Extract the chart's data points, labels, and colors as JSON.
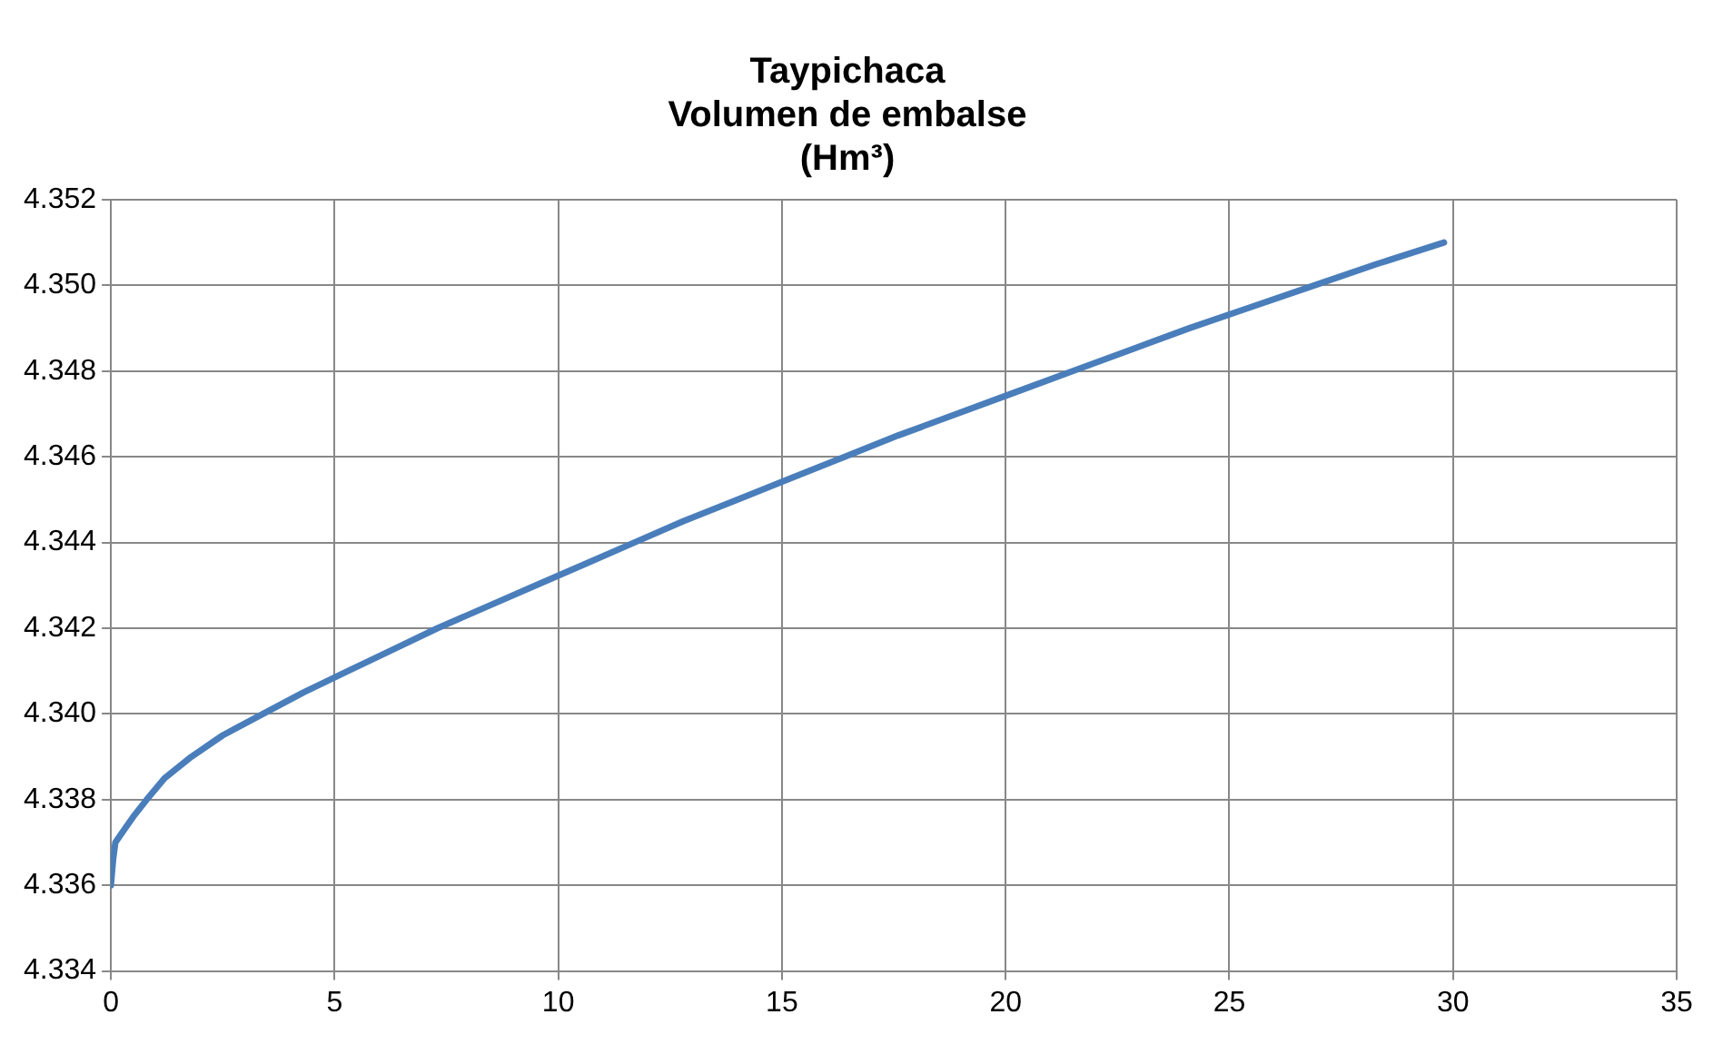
{
  "chart_data": {
    "type": "line",
    "title": "Taypichaca\nVolumen de embalse\n(Hm³)",
    "x": [
      0,
      0.05,
      0.1,
      0.3,
      0.5,
      0.8,
      1.2,
      1.8,
      2.5,
      3.4,
      4.3,
      5.3,
      6.3,
      7.3,
      8.4,
      9.5,
      10.6,
      11.7,
      12.8,
      14,
      15.2,
      16.4,
      17.6,
      18.9,
      20.2,
      21.5,
      22.8,
      24.1,
      25.5,
      26.9,
      28.3,
      29.8
    ],
    "series": [
      {
        "color": "#4a7ebb",
        "values": [
          4.336,
          4.3366,
          4.337,
          4.3373,
          4.3376,
          4.338,
          4.3385,
          4.339,
          4.3395,
          4.34,
          4.3405,
          4.341,
          4.3415,
          4.342,
          4.3425,
          4.343,
          4.3435,
          4.344,
          4.3445,
          4.345,
          4.3455,
          4.346,
          4.3465,
          4.347,
          4.3475,
          4.348,
          4.3485,
          4.349,
          4.3495,
          4.35,
          4.3505,
          4.351
        ]
      }
    ],
    "xlim": [
      0,
      35
    ],
    "xticks": [
      0,
      5,
      10,
      15,
      20,
      25,
      30,
      35
    ],
    "ylim": [
      4.334,
      4.352
    ],
    "yticks": [
      4.334,
      4.336,
      4.338,
      {
        "value": 4.34,
        "label": "4.340"
      },
      4.342,
      4.344,
      4.346,
      4.348,
      {
        "value": 4.35,
        "label": "4.350"
      },
      4.352
    ],
    "grid": true,
    "legend": false,
    "marker": "none",
    "line_style": "solid"
  }
}
